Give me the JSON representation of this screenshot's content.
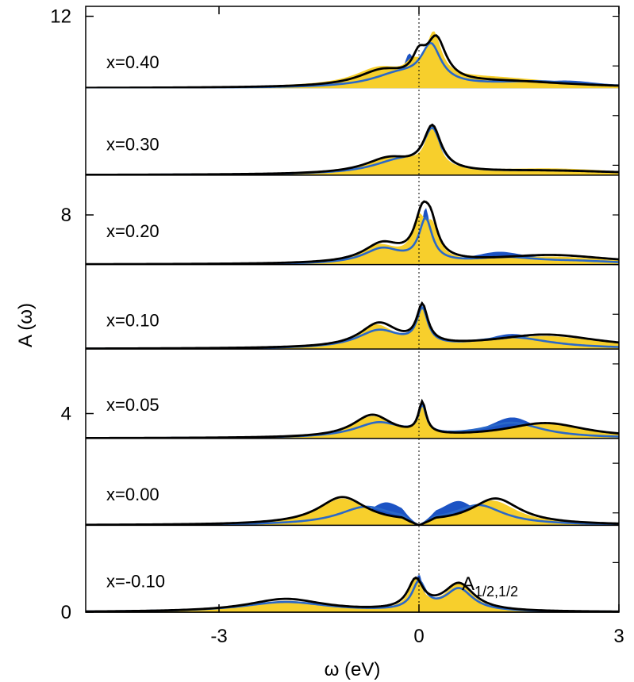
{
  "chart_data": {
    "type": "area",
    "xlabel": "ω (eV)",
    "ylabel": "A (ω)",
    "xlim": [
      -5,
      3
    ],
    "ylim": [
      0,
      12.2
    ],
    "x_ticks": [
      -3,
      0,
      3
    ],
    "x_tick_labels": [
      "-3",
      "0",
      "3"
    ],
    "y_ticks": [
      0,
      4,
      8,
      12
    ],
    "y_tick_labels": [
      "0",
      "4",
      "8",
      "12"
    ],
    "fermi_line_x": 0,
    "annotation": {
      "base": "A",
      "subscript": "1/2,1/2",
      "color": "#1f4fbf",
      "x": 0.72,
      "y": 0.55
    },
    "colors": {
      "fill": "#f7cf2c",
      "blue_fill": "#1c53c4",
      "black_line": "#000000",
      "blue_line": "#2a68c8"
    },
    "series_legend": [
      "filled yellow",
      "filled blue",
      "black line",
      "blue line"
    ],
    "panels": [
      {
        "label": "x=0.40",
        "baseline": 10.55,
        "upper": [
          10.55,
          12.2
        ],
        "peaks_yellow": [
          [
            -0.6,
            0.32,
            0.45
          ],
          [
            -0.1,
            0.22,
            0.12
          ],
          [
            0.22,
            0.9,
            0.14
          ],
          [
            1.0,
            0.2,
            1.4
          ]
        ],
        "peaks_blue": [
          [
            -0.15,
            0.55,
            0.1
          ],
          [
            0.2,
            0.8,
            0.16
          ],
          [
            2.2,
            0.15,
            0.7
          ]
        ],
        "peaks_black": [
          [
            -0.55,
            0.3,
            0.45
          ],
          [
            0.0,
            0.4,
            0.12
          ],
          [
            0.26,
            0.85,
            0.18
          ],
          [
            1.3,
            0.12,
            1.3
          ]
        ],
        "peaks_blueline": [
          [
            -0.3,
            0.25,
            0.5
          ],
          [
            0.18,
            0.75,
            0.18
          ],
          [
            1.8,
            0.12,
            1.0
          ]
        ]
      },
      {
        "label": "x=0.30",
        "baseline": 8.8,
        "upper": [
          8.8,
          10.55
        ],
        "peaks_yellow": [
          [
            -0.4,
            0.32,
            0.5
          ],
          [
            0.2,
            0.85,
            0.12
          ],
          [
            2.0,
            0.12,
            1.3
          ]
        ],
        "peaks_blue": [
          [
            0.22,
            0.95,
            0.12
          ],
          [
            1.5,
            0.12,
            1.0
          ]
        ],
        "peaks_black": [
          [
            -0.45,
            0.3,
            0.45
          ],
          [
            0.2,
            0.88,
            0.16
          ],
          [
            1.9,
            0.08,
            1.6
          ]
        ],
        "peaks_blueline": [
          [
            -0.3,
            0.25,
            0.5
          ],
          [
            0.2,
            0.8,
            0.16
          ],
          [
            2.0,
            0.08,
            1.5
          ]
        ]
      },
      {
        "label": "x=0.20",
        "baseline": 7.0,
        "upper": [
          7.0,
          8.8
        ],
        "peaks_yellow": [
          [
            -0.6,
            0.35,
            0.35
          ],
          [
            0.0,
            0.75,
            0.12
          ],
          [
            0.2,
            0.6,
            0.12
          ],
          [
            2.0,
            0.15,
            1.1
          ]
        ],
        "peaks_blue": [
          [
            0.1,
            1.1,
            0.09
          ],
          [
            1.2,
            0.22,
            0.5
          ],
          [
            2.4,
            0.1,
            0.8
          ]
        ],
        "peaks_black": [
          [
            -0.55,
            0.38,
            0.35
          ],
          [
            0.05,
            0.85,
            0.14
          ],
          [
            0.18,
            0.55,
            0.12
          ],
          [
            2.0,
            0.18,
            1.1
          ]
        ],
        "peaks_blueline": [
          [
            -0.55,
            0.3,
            0.35
          ],
          [
            0.1,
            0.85,
            0.12
          ],
          [
            1.3,
            0.12,
            0.6
          ],
          [
            2.4,
            0.05,
            0.8
          ]
        ]
      },
      {
        "label": "x=0.10",
        "baseline": 5.3,
        "upper": [
          5.3,
          7.0
        ],
        "peaks_yellow": [
          [
            -0.65,
            0.45,
            0.35
          ],
          [
            0.05,
            0.7,
            0.1
          ],
          [
            1.9,
            0.25,
            1.0
          ]
        ],
        "peaks_blue": [
          [
            0.05,
            0.8,
            0.08
          ],
          [
            1.4,
            0.3,
            0.55
          ]
        ],
        "peaks_black": [
          [
            -0.6,
            0.48,
            0.35
          ],
          [
            0.05,
            0.75,
            0.1
          ],
          [
            1.9,
            0.28,
            1.0
          ]
        ],
        "peaks_blueline": [
          [
            -0.6,
            0.35,
            0.4
          ],
          [
            0.05,
            0.7,
            0.1
          ],
          [
            1.4,
            0.22,
            0.7
          ]
        ]
      },
      {
        "label": "x=0.05",
        "baseline": 3.5,
        "upper": [
          3.5,
          5.3
        ],
        "peaks_yellow": [
          [
            -0.7,
            0.42,
            0.38
          ],
          [
            0.05,
            0.55,
            0.07
          ],
          [
            1.9,
            0.28,
            0.8
          ]
        ],
        "peaks_blue": [
          [
            0.05,
            0.65,
            0.06
          ],
          [
            1.4,
            0.42,
            0.45
          ]
        ],
        "peaks_black": [
          [
            -0.7,
            0.45,
            0.36
          ],
          [
            0.05,
            0.62,
            0.07
          ],
          [
            1.9,
            0.3,
            0.75
          ]
        ],
        "peaks_blueline": [
          [
            -0.6,
            0.3,
            0.45
          ],
          [
            0.05,
            0.55,
            0.07
          ],
          [
            1.4,
            0.3,
            0.55
          ]
        ]
      },
      {
        "label": "x=0.00",
        "baseline": 1.75,
        "upper": [
          1.75,
          3.5
        ],
        "peaks_yellow": [
          [
            -1.15,
            0.52,
            0.45
          ],
          [
            1.1,
            0.48,
            0.45
          ]
        ],
        "peaks_blue": [
          [
            -0.5,
            0.42,
            0.35
          ],
          [
            0.6,
            0.45,
            0.35
          ]
        ],
        "peaks_black": [
          [
            -1.15,
            0.55,
            0.45
          ],
          [
            1.15,
            0.52,
            0.45
          ]
        ],
        "peaks_blueline": [
          [
            -0.8,
            0.35,
            0.5
          ],
          [
            0.9,
            0.38,
            0.45
          ]
        ]
      },
      {
        "label": "x=-0.10",
        "baseline": 0.0,
        "upper": [
          0.0,
          1.75
        ],
        "peaks_yellow": [
          [
            -2.0,
            0.22,
            0.75
          ],
          [
            -0.05,
            0.6,
            0.12
          ],
          [
            0.6,
            0.55,
            0.25
          ]
        ],
        "peaks_blue": [
          [
            0.0,
            0.72,
            0.08
          ],
          [
            0.6,
            0.5,
            0.2
          ]
        ],
        "peaks_black": [
          [
            -2.0,
            0.26,
            0.7
          ],
          [
            -0.05,
            0.58,
            0.14
          ],
          [
            0.6,
            0.55,
            0.28
          ]
        ],
        "peaks_blueline": [
          [
            -2.0,
            0.2,
            0.8
          ],
          [
            0.0,
            0.55,
            0.12
          ],
          [
            0.6,
            0.45,
            0.25
          ]
        ]
      }
    ]
  }
}
